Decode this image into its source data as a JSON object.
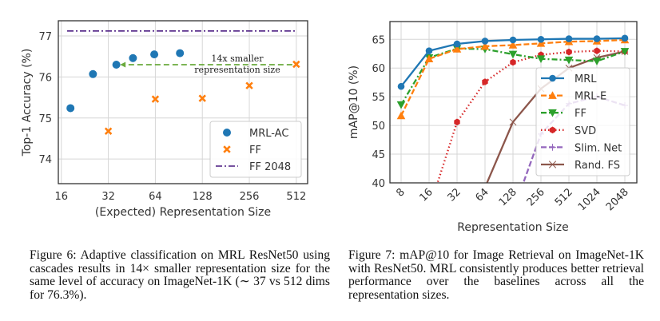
{
  "figure6": {
    "caption": "Figure 6:  Adaptive classification on MRL ResNet50 using cascades results in 14× smaller representation size for the same level of accuracy on ImageNet-1K (∼ 37 vs 512 dims for 76.3%).",
    "annotation_line1": "14x smaller",
    "annotation_line2": "representation size"
  },
  "figure7": {
    "caption": "Figure 7:  mAP@10 for Image Retrieval on ImageNet-1K with ResNet50. MRL consistently produces better retrieval performance over the baselines across all the representation sizes."
  },
  "chart_data": [
    {
      "type": "scatter",
      "xlabel": "(Expected) Representation Size",
      "ylabel": "Top-1 Accuracy (%)",
      "xscale": "log2",
      "xlim": [
        15.3,
        605
      ],
      "ylim": [
        73.4,
        77.37
      ],
      "xticks": [
        16,
        32,
        64,
        128,
        256,
        512
      ],
      "yticks": [
        74,
        75,
        76,
        77
      ],
      "grid": true,
      "legend_position": "lower-right",
      "series": [
        {
          "name": "MRL-AC",
          "marker": "circle",
          "color": "#1f77b4",
          "x": [
            18.3,
            25.5,
            36,
            46,
            63,
            92
          ],
          "y": [
            75.24,
            76.07,
            76.3,
            76.46,
            76.55,
            76.58
          ]
        },
        {
          "name": "FF",
          "marker": "x",
          "color": "#ff7f0e",
          "x": [
            32,
            64,
            128,
            256,
            512
          ],
          "y": [
            74.68,
            75.46,
            75.48,
            75.79,
            76.31
          ]
        },
        {
          "name": "FF 2048",
          "marker": "hline",
          "color": "#4a1a80",
          "y": 77.12
        }
      ],
      "arrow": {
        "from": [
          512,
          76.3
        ],
        "to": [
          38,
          76.3
        ],
        "color": "#6aaa3c"
      }
    },
    {
      "type": "line",
      "xlabel": "Representation Size",
      "ylabel": "mAP@10 (%)",
      "categories": [
        "8",
        "16",
        "32",
        "64",
        "128",
        "256",
        "512",
        "1024",
        "2048"
      ],
      "ylim": [
        40,
        68.1
      ],
      "yticks": [
        40,
        45,
        50,
        55,
        60,
        65
      ],
      "grid": true,
      "legend_position": "center-right",
      "series": [
        {
          "name": "MRL",
          "color": "#1f77b4",
          "style": "solid",
          "marker": "circle",
          "values": [
            56.8,
            63.0,
            64.2,
            64.7,
            64.9,
            65.0,
            65.1,
            65.1,
            65.2
          ]
        },
        {
          "name": "MRL-E",
          "color": "#ff7f0e",
          "style": "dashed",
          "marker": "triangle-up",
          "values": [
            51.7,
            61.6,
            63.3,
            63.8,
            64.0,
            64.3,
            64.6,
            64.7,
            64.9
          ]
        },
        {
          "name": "FF",
          "color": "#2ca02c",
          "style": "dashdot",
          "marker": "triangle-down",
          "values": [
            53.6,
            61.8,
            63.4,
            63.3,
            62.4,
            61.6,
            61.4,
            61.2,
            62.9
          ]
        },
        {
          "name": "SVD",
          "color": "#d62728",
          "style": "dotted",
          "marker": "hexagon",
          "values": [
            null,
            35.4,
            50.6,
            57.6,
            61.0,
            62.3,
            62.8,
            63.0,
            62.9
          ]
        },
        {
          "name": "Slim. Net",
          "color": "#9467bd",
          "style": "dashed",
          "marker": "plus",
          "values": [
            null,
            null,
            null,
            null,
            35.0,
            48.5,
            53.8,
            55.0,
            53.5
          ]
        },
        {
          "name": "Rand. FS",
          "color": "#8c564b",
          "style": "solid",
          "marker": "x",
          "values": [
            null,
            null,
            null,
            39.2,
            50.6,
            56.4,
            60.0,
            61.8,
            62.9
          ]
        }
      ]
    }
  ]
}
